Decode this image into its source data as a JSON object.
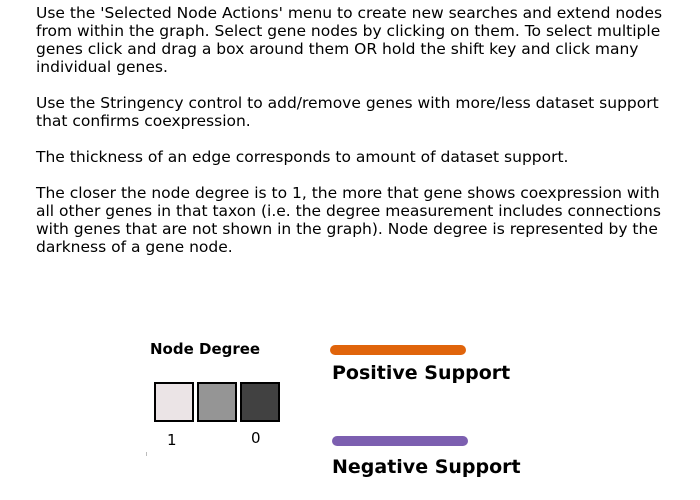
{
  "instructions": {
    "paragraphs": [
      "Use the 'Selected Node Actions' menu to create new searches and extend nodes from within the graph. Select gene nodes by clicking on them. To select multiple genes click and drag a box around them OR hold the shift key and click many individual genes.",
      "Use the Stringency control to add/remove genes with more/less dataset support that confirms coexpression.",
      "The thickness of an edge corresponds to amount of dataset support.",
      "The closer the node degree is to 1, the more that gene shows coexpression with all other genes in that taxon (i.e. the degree measurement includes connections with genes that are not shown in the graph). Node degree is represented by the darkness of a gene node."
    ]
  },
  "legend": {
    "node_degree_title": "Node Degree",
    "degree_low_label": "1",
    "degree_high_label": "0",
    "swatch_colors": [
      "#ebe4e6",
      "#959595",
      "#414141"
    ],
    "positive_support": {
      "label": "Positive Support",
      "color": "#e0640b"
    },
    "negative_support": {
      "label": "Negative Support",
      "color": "#7c5fb0"
    }
  }
}
